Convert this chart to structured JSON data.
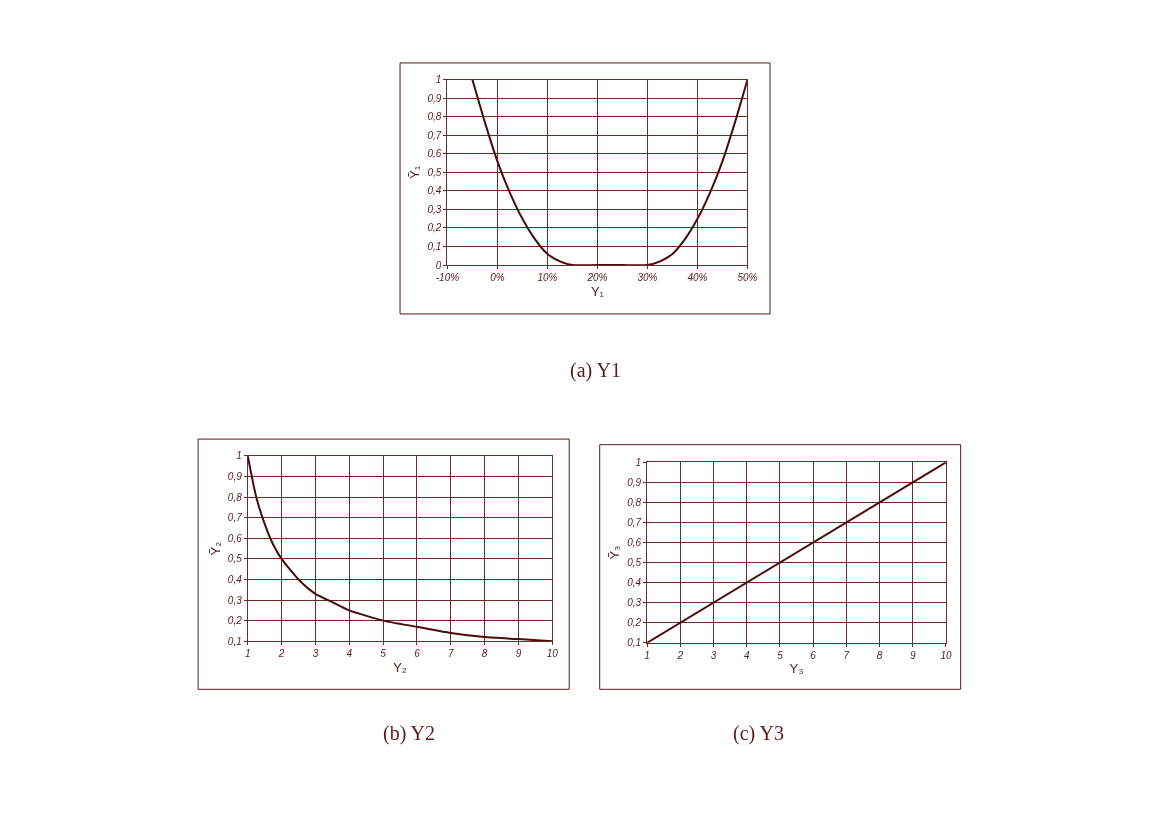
{
  "chart_data": [
    {
      "type": "line",
      "xlabel": "Y₁",
      "ylabel": "Ỹ₁",
      "annotations": [
        "(a) Y1"
      ],
      "grid": true,
      "marker": "none",
      "line_style": "solid",
      "x": [
        -5,
        -2.5,
        0,
        2.5,
        5,
        7.5,
        10,
        12.5,
        15,
        20,
        25,
        30,
        32.5,
        35,
        37.5,
        40,
        42.5,
        45,
        47.5,
        50
      ],
      "series": [
        {
          "color": "#4a0a0a",
          "values": [
            1,
            0.77,
            0.56,
            0.39,
            0.25,
            0.14,
            0.06,
            0.02,
            0,
            0,
            0,
            0,
            0.02,
            0.06,
            0.14,
            0.25,
            0.39,
            0.56,
            0.77,
            1
          ]
        }
      ],
      "xlim": [
        -10,
        50
      ],
      "xticks": [
        {
          "value": -10,
          "label": "-10%"
        },
        {
          "value": 0,
          "label": "0%"
        },
        {
          "value": 10,
          "label": "10%"
        },
        {
          "value": 20,
          "label": "20%"
        },
        {
          "value": 30,
          "label": "30%"
        },
        {
          "value": 40,
          "label": "40%"
        },
        {
          "value": 50,
          "label": "50%"
        }
      ],
      "ylim": [
        0,
        1
      ],
      "yticks": [
        0,
        {
          "value": 0.1,
          "label": "0,1"
        },
        {
          "value": 0.2,
          "label": "0,2"
        },
        {
          "value": 0.3,
          "label": "0,3"
        },
        {
          "value": 0.4,
          "label": "0,4"
        },
        {
          "value": 0.5,
          "label": "0,5"
        },
        {
          "value": 0.6,
          "label": "0,6"
        },
        {
          "value": 0.7,
          "label": "0,7"
        },
        {
          "value": 0.8,
          "label": "0,8"
        },
        {
          "value": 0.9,
          "label": "0,9"
        },
        1
      ]
    },
    {
      "type": "line",
      "xlabel": "Y₂",
      "ylabel": "Ỹ₂",
      "annotations": [
        "(b) Y2"
      ],
      "grid": true,
      "marker": "none",
      "line_style": "solid",
      "x": [
        1,
        1.25,
        1.5,
        1.75,
        2,
        2.5,
        3,
        3.5,
        4,
        5,
        6,
        7,
        8,
        9,
        10
      ],
      "series": [
        {
          "color": "#4a0a0a",
          "values": [
            1,
            0.8,
            0.67,
            0.57,
            0.5,
            0.4,
            0.33,
            0.29,
            0.25,
            0.2,
            0.17,
            0.14,
            0.12,
            0.11,
            0.1
          ]
        }
      ],
      "xlim": [
        1,
        10
      ],
      "xticks": [
        1,
        2,
        3,
        4,
        5,
        6,
        7,
        8,
        9,
        10
      ],
      "ylim": [
        0.1,
        1
      ],
      "yticks": [
        {
          "value": 0.1,
          "label": "0,1"
        },
        {
          "value": 0.2,
          "label": "0,2"
        },
        {
          "value": 0.3,
          "label": "0,3"
        },
        {
          "value": 0.4,
          "label": "0,4"
        },
        {
          "value": 0.5,
          "label": "0,5"
        },
        {
          "value": 0.6,
          "label": "0,6"
        },
        {
          "value": 0.7,
          "label": "0,7"
        },
        {
          "value": 0.8,
          "label": "0,8"
        },
        {
          "value": 0.9,
          "label": "0,9"
        },
        1
      ]
    },
    {
      "type": "line",
      "xlabel": "Y₃",
      "ylabel": "Ỹ₃",
      "annotations": [
        "(c) Y3"
      ],
      "grid": true,
      "marker": "none",
      "line_style": "solid",
      "x": [
        1,
        10
      ],
      "series": [
        {
          "color": "#4a0a0a",
          "values": [
            0.1,
            1
          ]
        }
      ],
      "xlim": [
        1,
        10
      ],
      "xticks": [
        1,
        2,
        3,
        4,
        5,
        6,
        7,
        8,
        9,
        10
      ],
      "ylim": [
        0.1,
        1
      ],
      "yticks": [
        {
          "value": 0.1,
          "label": "0,1"
        },
        {
          "value": 0.2,
          "label": "0,2"
        },
        {
          "value": 0.3,
          "label": "0,3"
        },
        {
          "value": 0.4,
          "label": "0,4"
        },
        {
          "value": 0.5,
          "label": "0,5"
        },
        {
          "value": 0.6,
          "label": "0,6"
        },
        {
          "value": 0.7,
          "label": "0,7"
        },
        {
          "value": 0.8,
          "label": "0,8"
        },
        {
          "value": 0.9,
          "label": "0,9"
        },
        1
      ]
    }
  ]
}
